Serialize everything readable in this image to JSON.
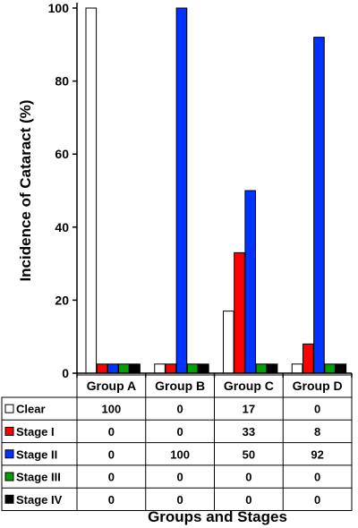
{
  "chart_data": {
    "type": "bar",
    "categories": [
      "Group A",
      "Group B",
      "Group C",
      "Group D"
    ],
    "series": [
      {
        "name": "Clear",
        "values": [
          100,
          0,
          17,
          0
        ],
        "color": "#ffffff"
      },
      {
        "name": "Stage I",
        "values": [
          0,
          0,
          33,
          8
        ],
        "color": "#ff0000"
      },
      {
        "name": "Stage II",
        "values": [
          0,
          100,
          50,
          92
        ],
        "color": "#0033ff"
      },
      {
        "name": "Stage III",
        "values": [
          0,
          0,
          0,
          0
        ],
        "color": "#00a000"
      },
      {
        "name": "Stage IV",
        "values": [
          0,
          0,
          0,
          0
        ],
        "color": "#000000"
      }
    ],
    "table_values": [
      [
        "100",
        "0",
        "17",
        "0"
      ],
      [
        "0",
        "0",
        "33",
        "8"
      ],
      [
        "0",
        "100",
        "50",
        "92"
      ],
      [
        "0",
        "0",
        "0",
        "0"
      ],
      [
        "0",
        "0",
        "0",
        "0"
      ]
    ],
    "ylabel": "Incidence of Cataract (%)",
    "xlabel": "Groups and Stages",
    "ylim": [
      0,
      100
    ],
    "yticks": [
      "0",
      "20",
      "40",
      "60",
      "80",
      "100"
    ],
    "grid": false,
    "legend": "table-below"
  }
}
